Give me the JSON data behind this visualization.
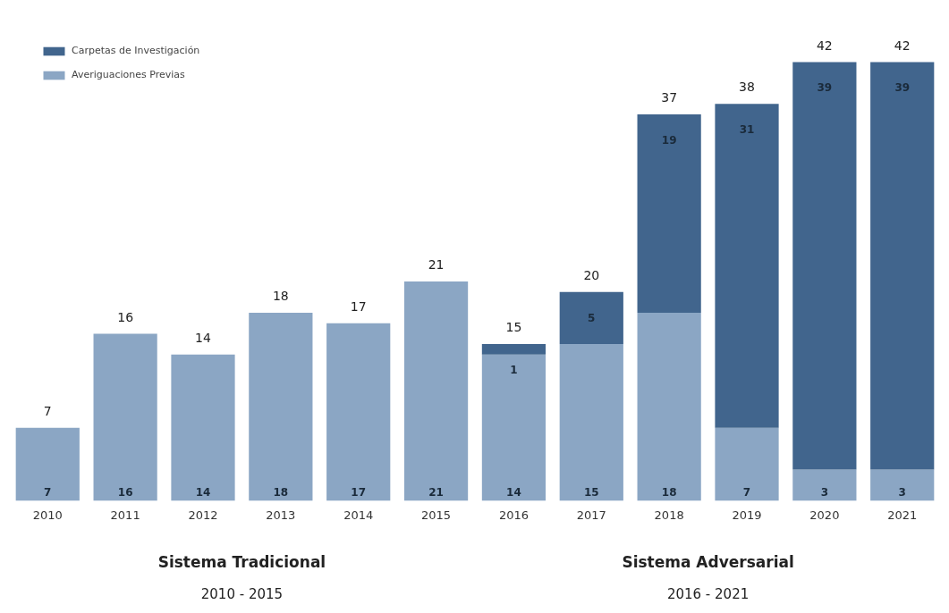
{
  "chart_data": {
    "type": "bar",
    "stacked": true,
    "data_labels": true,
    "legend": "top left",
    "grid": false,
    "categories": [
      "2010",
      "2011",
      "2012",
      "2013",
      "2014",
      "2015",
      "2016",
      "2017",
      "2018",
      "2019",
      "2020",
      "2021"
    ],
    "series": [
      {
        "name": "Averiguaciones Previas",
        "color": "#8ba6c4",
        "values": [
          7,
          16,
          14,
          18,
          17,
          21,
          14,
          15,
          18,
          7,
          3,
          3
        ]
      },
      {
        "name": "Carpetas de Investigación",
        "color": "#41658d",
        "values": [
          null,
          null,
          null,
          null,
          null,
          null,
          1,
          5,
          19,
          31,
          39,
          39
        ]
      }
    ],
    "totals": [
      "7",
      "16",
      "14",
      "18",
      "17",
      "21",
      "15",
      "20",
      "37",
      "38",
      "42",
      "42"
    ],
    "annotations": [
      "Sistema Tradicional",
      "2010 - 2015",
      "Sistema Adversarial",
      "2016 - 2021"
    ]
  }
}
